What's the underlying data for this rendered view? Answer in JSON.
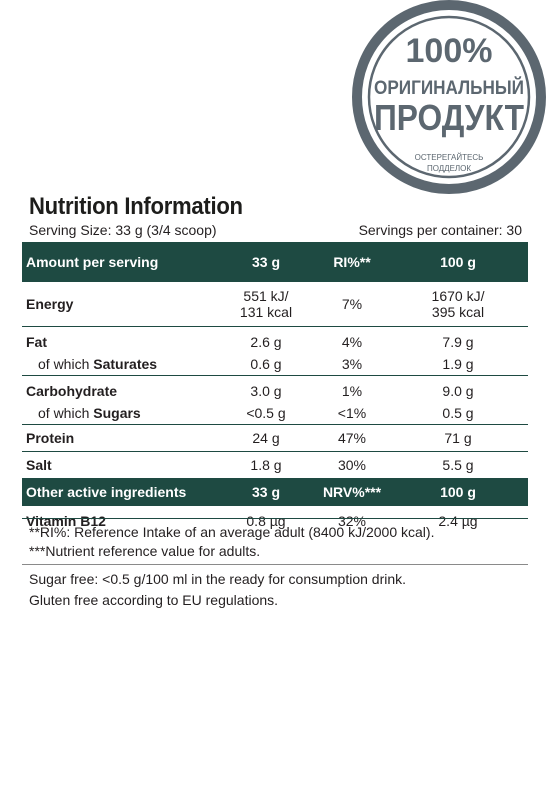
{
  "stamp": {
    "percent": "100%",
    "line1": "ОРИГИНАЛЬНЫЙ",
    "line2": "ПРОДУКТ",
    "line3": "ОСТЕРЕГАЙТЕСЬ",
    "line4": "ПОДДЕЛОК",
    "color": "#5c6770"
  },
  "title": "Nutrition Information",
  "serving_size": "Serving Size: 33 g (3/4 scoop)",
  "servings_per_container": "Servings per container: 30",
  "header": {
    "c0": "Amount per serving",
    "c1": "33 g",
    "c2": "RI%**",
    "c3": "100 g"
  },
  "energy": {
    "label": "Energy",
    "kj": "551 kJ/",
    "kcal": "131 kcal",
    "ri": "7%",
    "kj100": "1670 kJ/",
    "kcal100": "395 kcal"
  },
  "fat": {
    "label": "Fat",
    "v": "2.6 g",
    "ri": "4%",
    "v100": "7.9 g"
  },
  "saturates": {
    "prefix": "of which ",
    "label": "Saturates",
    "v": "0.6 g",
    "ri": "3%",
    "v100": "1.9 g"
  },
  "carb": {
    "label": "Carbohydrate",
    "v": "3.0 g",
    "ri": "1%",
    "v100": "9.0 g"
  },
  "sugars": {
    "prefix": "of which ",
    "label": "Sugars",
    "v": "<0.5 g",
    "ri": "<1%",
    "v100": "0.5 g"
  },
  "protein": {
    "label": "Protein",
    "v": "24 g",
    "ri": "47%",
    "v100": "71 g"
  },
  "salt": {
    "label": "Salt",
    "v": "1.8 g",
    "ri": "30%",
    "v100": "5.5 g"
  },
  "header2": {
    "c0": "Other active ingredients",
    "c1": "33 g",
    "c2": "NRV%***",
    "c3": "100 g"
  },
  "b12": {
    "label": "Vitamin B12",
    "v": "0.8 µg",
    "ri": "32%",
    "v100": "2.4 µg"
  },
  "footnote1": "**RI%: Reference Intake of an average adult (8400 kJ/2000 kcal).",
  "footnote2": "***Nutrient reference value for adults.",
  "note1": "Sugar free: <0.5 g/100 ml in the ready for consumption drink.",
  "note2": "Gluten free according to EU regulations.",
  "colors": {
    "header_bg": "#1e4a42",
    "text": "#231f20"
  }
}
